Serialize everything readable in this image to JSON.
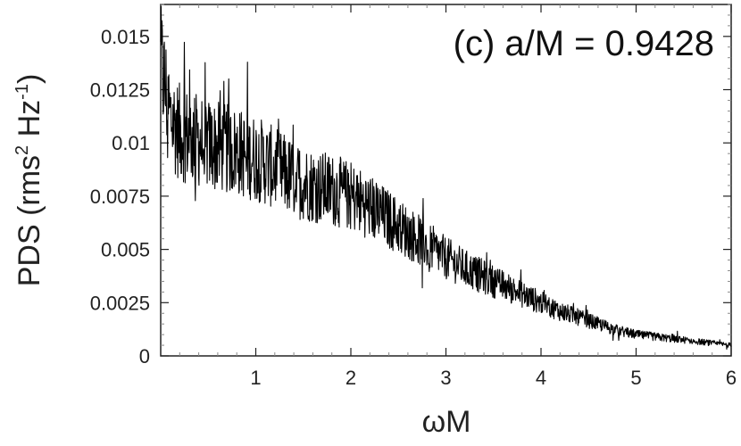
{
  "chart_data": {
    "type": "line",
    "title": "",
    "annotation": "(c) a/M = 0.9428",
    "xlabel": "ωM",
    "ylabel": {
      "prefix": "PDS (rms",
      "sup1": "2",
      "mid": " Hz",
      "sup2": "-1",
      "suffix": ")"
    },
    "xlim": [
      0,
      6
    ],
    "ylim": [
      0,
      0.0165
    ],
    "x_ticks": [
      {
        "value": 1,
        "label": "1"
      },
      {
        "value": 2,
        "label": "2"
      },
      {
        "value": 3,
        "label": "3"
      },
      {
        "value": 4,
        "label": "4"
      },
      {
        "value": 5,
        "label": "5"
      },
      {
        "value": 6,
        "label": "6"
      }
    ],
    "y_ticks": [
      {
        "value": 0,
        "label": "0"
      },
      {
        "value": 0.0025,
        "label": "0.0025"
      },
      {
        "value": 0.005,
        "label": "0.005"
      },
      {
        "value": 0.0075,
        "label": "0.0075"
      },
      {
        "value": 0.01,
        "label": "0.01"
      },
      {
        "value": 0.0125,
        "label": "0.0125"
      },
      {
        "value": 0.015,
        "label": "0.015"
      }
    ],
    "grid": false,
    "series": [
      {
        "color": "#000000",
        "x": [
          0,
          0.05,
          0.1,
          0.2,
          0.3,
          0.4,
          0.5,
          0.6,
          0.7,
          0.8,
          0.9,
          1.0,
          1.2,
          1.4,
          1.6,
          1.8,
          2.0,
          2.2,
          2.4,
          2.6,
          2.8,
          3.0,
          3.2,
          3.4,
          3.6,
          3.8,
          4.0,
          4.2,
          4.4,
          4.6,
          4.8,
          5.0,
          5.2,
          5.4,
          5.6,
          5.8,
          6.0
        ],
        "values": [
          0.0138,
          0.0125,
          0.0112,
          0.0105,
          0.0103,
          0.0101,
          0.0099,
          0.0098,
          0.0097,
          0.0096,
          0.0094,
          0.0093,
          0.0088,
          0.0083,
          0.008,
          0.0078,
          0.0075,
          0.007,
          0.0064,
          0.0058,
          0.0052,
          0.0046,
          0.0041,
          0.0037,
          0.0033,
          0.0029,
          0.0025,
          0.0021,
          0.0018,
          0.0015,
          0.0012,
          0.001,
          0.0009,
          0.0008,
          0.0007,
          0.0006,
          0.0005
        ],
        "noise_relative": 0.22
      }
    ]
  }
}
